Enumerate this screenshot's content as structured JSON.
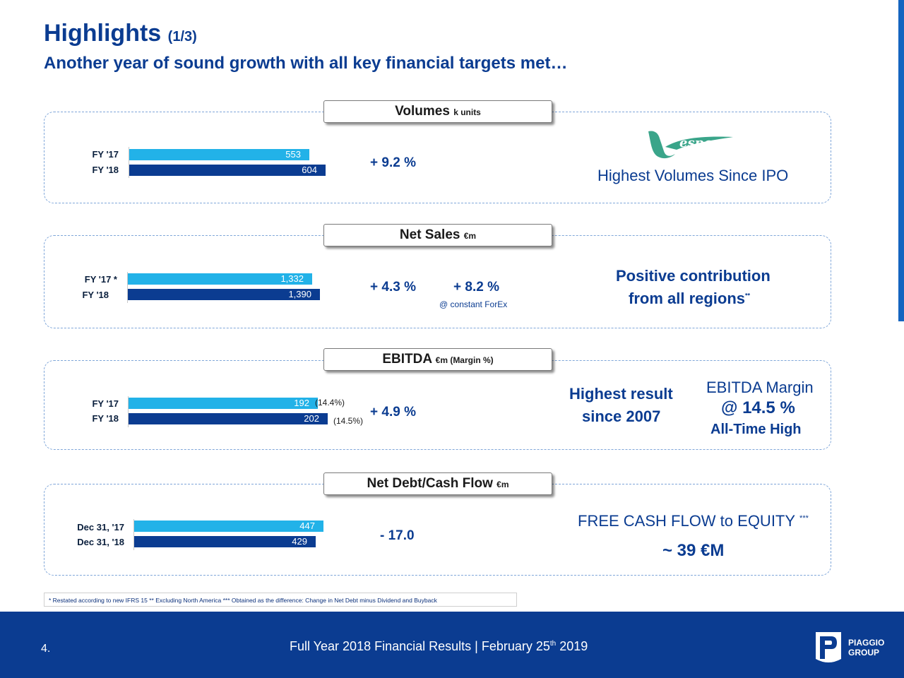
{
  "header": {
    "title": "Highlights",
    "title_part": "(1/3)",
    "subtitle": "Another year of sound growth with all key financial targets met…"
  },
  "chart_data": [
    {
      "type": "bar",
      "title": "Volumes",
      "unit": "k units",
      "categories": [
        "FY '17",
        "FY '18"
      ],
      "values": [
        553,
        604
      ],
      "value_labels": [
        "553",
        "604"
      ],
      "change": "+ 9.2 %",
      "commentary": "Highest Volumes Since IPO",
      "logo_text": "Vespa"
    },
    {
      "type": "bar",
      "title": "Net Sales",
      "unit": "€m",
      "categories": [
        "FY '17 *",
        "FY '18"
      ],
      "values": [
        1332,
        1390
      ],
      "value_labels": [
        "1,332",
        "1,390"
      ],
      "change": "+ 4.3 %",
      "change_forex": "+ 8.2 %",
      "forex_note": "@ constant ForEx",
      "commentary_line1": "Positive contribution",
      "commentary_line2": "from all regions",
      "commentary_marker": "**"
    },
    {
      "type": "bar",
      "title": "EBITDA",
      "unit": "€m (Margin %)",
      "categories": [
        "FY '17",
        "FY '18"
      ],
      "values": [
        192,
        202
      ],
      "value_labels": [
        "192",
        "202"
      ],
      "margins": [
        "(14.4%)",
        "(14.5%)"
      ],
      "change": "+ 4.9 %",
      "commentary_line1": "Highest result",
      "commentary_line2": "since 2007",
      "margin_line1": "EBITDA Margin",
      "margin_line2": "@ 14.5 %",
      "margin_line3": "All-Time High"
    },
    {
      "type": "bar",
      "title": "Net Debt/Cash Flow",
      "unit": "€m",
      "categories": [
        "Dec 31, '17",
        "Dec 31, '18"
      ],
      "values": [
        447,
        429
      ],
      "value_labels": [
        "447",
        "429"
      ],
      "change": "- 17.0",
      "commentary_line1": "FREE CASH FLOW to EQUITY",
      "commentary_marker": "***",
      "commentary_line2": "~ 39 €M"
    }
  ],
  "footnote": "* Restated according to new IFRS 15  ** Excluding North America  *** Obtained as the difference: Change in Net Debt minus Dividend and Buyback",
  "footer": {
    "page_number": "4.",
    "text_main": "Full Year 2018 Financial Results | February 25",
    "text_sup": "th",
    "text_year": " 2019",
    "logo_line1": "PIAGGIO",
    "logo_line2": "GROUP"
  },
  "colors": {
    "brand_blue": "#0b3c91",
    "fy17_bar": "#22b2e8",
    "fy18_bar": "#0b3c91",
    "vespa_green": "#3aa58a"
  }
}
